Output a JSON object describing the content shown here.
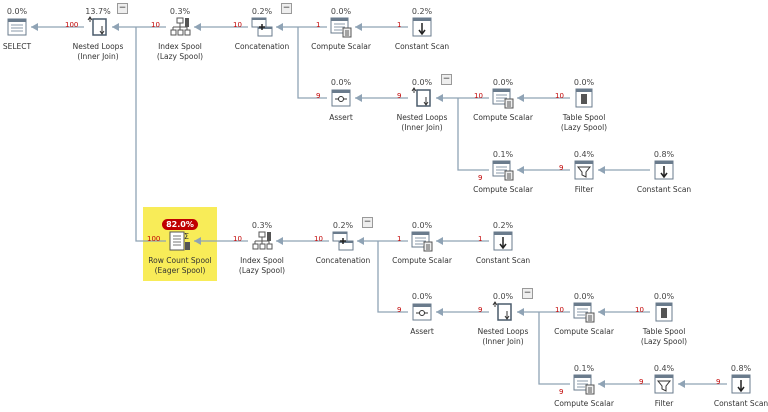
{
  "highlight_color": "#f8ec58",
  "edge_color": "#8fa3b5",
  "row_count_color": "#c00000",
  "nodes": [
    {
      "pct": "0.0%",
      "label": [
        "SELECT"
      ],
      "icon": "select-icon"
    },
    {
      "pct": "13.7%",
      "label": [
        "Nested Loops",
        "(Inner Join)"
      ],
      "icon": "nested-loops-icon",
      "rows": "100",
      "collapse": "−"
    },
    {
      "pct": "0.3%",
      "label": [
        "Index Spool",
        "(Lazy Spool)"
      ],
      "icon": "index-spool-icon",
      "rows": "10"
    },
    {
      "pct": "0.2%",
      "label": [
        "Concatenation"
      ],
      "icon": "concatenation-icon",
      "rows": "10",
      "collapse": "−"
    },
    {
      "pct": "0.0%",
      "label": [
        "Compute Scalar"
      ],
      "icon": "compute-scalar-icon",
      "rows": "1"
    },
    {
      "pct": "0.2%",
      "label": [
        "Constant Scan"
      ],
      "icon": "constant-scan-icon",
      "rows": "1"
    },
    {
      "pct": "0.0%",
      "label": [
        "Assert"
      ],
      "icon": "assert-icon",
      "rows": "9"
    },
    {
      "pct": "0.0%",
      "label": [
        "Nested Loops",
        "(Inner Join)"
      ],
      "icon": "nested-loops-icon",
      "rows": "9",
      "collapse": "−"
    },
    {
      "pct": "0.0%",
      "label": [
        "Compute Scalar"
      ],
      "icon": "compute-scalar-icon",
      "rows": "10"
    },
    {
      "pct": "0.0%",
      "label": [
        "Table Spool",
        "(Lazy Spool)"
      ],
      "icon": "table-spool-icon",
      "rows": "10"
    },
    {
      "pct": "0.1%",
      "label": [
        "Compute Scalar"
      ],
      "icon": "compute-scalar-icon",
      "rows": "9"
    },
    {
      "pct": "0.4%",
      "label": [
        "Filter"
      ],
      "icon": "filter-icon",
      "rows": "9"
    },
    {
      "pct": "0.8%",
      "label": [
        "Constant Scan"
      ],
      "icon": "constant-scan-icon"
    },
    {
      "pct": "82.0%",
      "label": [
        "Row Count Spool",
        "(Eager Spool)"
      ],
      "icon": "row-count-spool-icon",
      "rows": "100",
      "hot": true
    },
    {
      "pct": "0.3%",
      "label": [
        "Index Spool",
        "(Lazy Spool)"
      ],
      "icon": "index-spool-icon",
      "rows": "10"
    },
    {
      "pct": "0.2%",
      "label": [
        "Concatenation"
      ],
      "icon": "concatenation-icon",
      "rows": "10",
      "collapse": "−"
    },
    {
      "pct": "0.0%",
      "label": [
        "Compute Scalar"
      ],
      "icon": "compute-scalar-icon",
      "rows": "1"
    },
    {
      "pct": "0.2%",
      "label": [
        "Constant Scan"
      ],
      "icon": "constant-scan-icon",
      "rows": "1"
    },
    {
      "pct": "0.0%",
      "label": [
        "Assert"
      ],
      "icon": "assert-icon",
      "rows": "9"
    },
    {
      "pct": "0.0%",
      "label": [
        "Nested Loops",
        "(Inner Join)"
      ],
      "icon": "nested-loops-icon",
      "rows": "9",
      "collapse": "−"
    },
    {
      "pct": "0.0%",
      "label": [
        "Compute Scalar"
      ],
      "icon": "compute-scalar-icon",
      "rows": "10"
    },
    {
      "pct": "0.0%",
      "label": [
        "Table Spool",
        "(Lazy Spool)"
      ],
      "icon": "table-spool-icon",
      "rows": "10"
    },
    {
      "pct": "0.1%",
      "label": [
        "Compute Scalar"
      ],
      "icon": "compute-scalar-icon",
      "rows": "9"
    },
    {
      "pct": "0.4%",
      "label": [
        "Filter"
      ],
      "icon": "filter-icon",
      "rows": "9"
    },
    {
      "pct": "0.8%",
      "label": [
        "Constant Scan"
      ],
      "icon": "constant-scan-icon",
      "rows": "9"
    }
  ]
}
